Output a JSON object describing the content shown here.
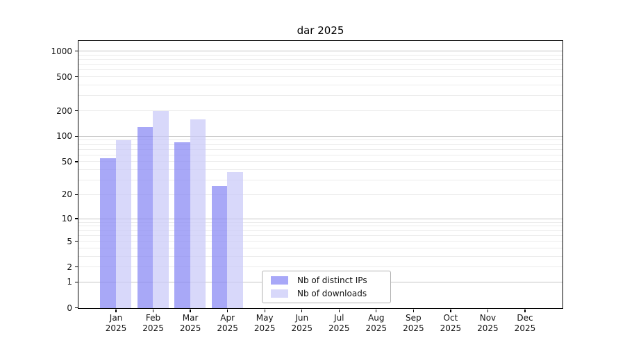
{
  "chart_data": {
    "type": "bar",
    "title": "dar 2025",
    "categories": [
      "Jan 2025",
      "Feb 2025",
      "Mar 2025",
      "Apr 2025",
      "May 2025",
      "Jun 2025",
      "Jul 2025",
      "Aug 2025",
      "Sep 2025",
      "Oct 2025",
      "Nov 2025",
      "Dec 2025"
    ],
    "series": [
      {
        "name": "Nb of distinct IPs",
        "color": "rgba(134,134,244,0.72)",
        "swatch": "#a8a8f8",
        "values": [
          56,
          130,
          86,
          26,
          0,
          0,
          0,
          0,
          0,
          0,
          0,
          0
        ]
      },
      {
        "name": "Nb of downloads",
        "color": "rgba(201,201,248,0.72)",
        "swatch": "#d8d8fa",
        "values": [
          91,
          200,
          160,
          38,
          0,
          0,
          0,
          0,
          0,
          0,
          0,
          0
        ]
      }
    ],
    "y_scale": "log1p",
    "y_ticks": [
      0,
      1,
      2,
      5,
      10,
      20,
      50,
      100,
      200,
      500,
      1000
    ],
    "y_max": 1300,
    "ylabel": "",
    "xlabel": "",
    "grid": {
      "major_at": [
        1,
        10,
        100,
        1000
      ],
      "minor_at": [
        2,
        3,
        4,
        5,
        6,
        7,
        8,
        9,
        20,
        30,
        40,
        50,
        60,
        70,
        80,
        90,
        200,
        300,
        400,
        500,
        600,
        700,
        800,
        900
      ],
      "major_color": "#c3c3c3",
      "minor_color": "#ebebeb"
    },
    "legend_position": "lower center",
    "axis_color": "#000000"
  }
}
